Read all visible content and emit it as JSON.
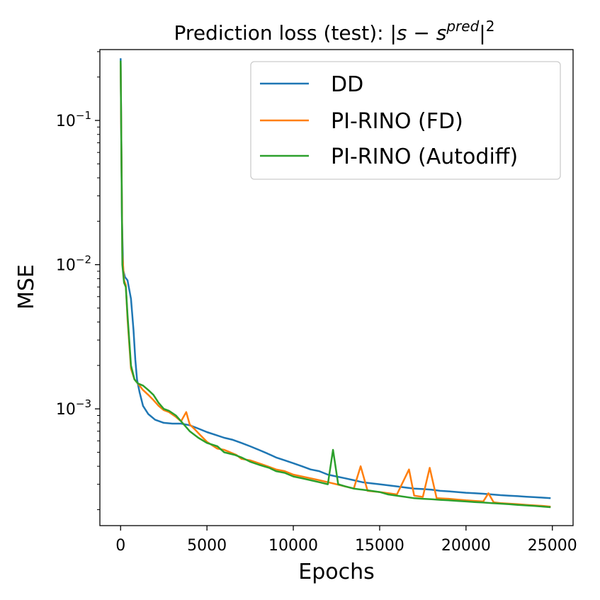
{
  "chart_data": {
    "type": "line",
    "title_prefix": "Prediction loss (test): |",
    "title_s": "s",
    "title_minus": " − ",
    "title_s2": "s",
    "title_sup": "pred",
    "title_suffix": "|",
    "title_exp": "2",
    "xlabel": "Epochs",
    "ylabel": "MSE",
    "xlim": [
      -1200,
      26200
    ],
    "ylim": [
      0.000155,
      0.31
    ],
    "yscale": "log",
    "xticks": [
      0,
      5000,
      10000,
      15000,
      20000,
      25000
    ],
    "xtick_labels": [
      "0",
      "5000",
      "10000",
      "15000",
      "20000",
      "25000"
    ],
    "yticks": [
      0.001,
      0.01,
      0.1
    ],
    "ytick_base": [
      "10",
      "10",
      "10"
    ],
    "ytick_exp": [
      "−3",
      "−2",
      "−1"
    ],
    "legend_location": "upper right",
    "series": [
      {
        "name": "DD",
        "color": "#1f77b4",
        "x": [
          0,
          80,
          150,
          250,
          400,
          600,
          750,
          850,
          950,
          1100,
          1300,
          1600,
          2000,
          2500,
          3000,
          3500,
          4000,
          4500,
          5000,
          5500,
          6000,
          6500,
          7000,
          7500,
          8000,
          8500,
          9000,
          9500,
          10000,
          10500,
          11000,
          11500,
          12000,
          12500,
          13000,
          13500,
          14000,
          14500,
          15000,
          15500,
          16000,
          16500,
          17000,
          17500,
          18000,
          18500,
          19000,
          19500,
          20000,
          20500,
          21000,
          21500,
          22000,
          22500,
          23000,
          23500,
          24000,
          24500,
          24900
        ],
        "y": [
          0.27,
          0.02,
          0.0092,
          0.0082,
          0.0078,
          0.0058,
          0.0035,
          0.0022,
          0.0016,
          0.0013,
          0.00105,
          0.00092,
          0.00084,
          0.0008,
          0.00079,
          0.00079,
          0.00077,
          0.00073,
          0.00069,
          0.00066,
          0.00063,
          0.00061,
          0.00058,
          0.00055,
          0.00052,
          0.00049,
          0.00046,
          0.00044,
          0.00042,
          0.0004,
          0.00038,
          0.00037,
          0.00035,
          0.00034,
          0.00033,
          0.00032,
          0.00031,
          0.000305,
          0.0003,
          0.000295,
          0.00029,
          0.000285,
          0.00028,
          0.000278,
          0.000275,
          0.00027,
          0.000268,
          0.000265,
          0.000262,
          0.00026,
          0.000258,
          0.000255,
          0.000252,
          0.00025,
          0.000248,
          0.000246,
          0.000244,
          0.000242,
          0.00024
        ]
      },
      {
        "name": "PI-RINO (FD)",
        "color": "#ff7f0e",
        "x": [
          0,
          100,
          200,
          300,
          400,
          600,
          800,
          1000,
          1300,
          1600,
          1900,
          2200,
          2500,
          2800,
          3200,
          3500,
          3800,
          4000,
          4300,
          4600,
          5000,
          5600,
          6000,
          6700,
          7000,
          7500,
          8000,
          8500,
          9000,
          9500,
          10000,
          10500,
          11000,
          11500,
          12000,
          12500,
          13000,
          13500,
          13900,
          14300,
          15000,
          15500,
          16000,
          16700,
          17000,
          17500,
          17900,
          18300,
          19000,
          19500,
          20000,
          20500,
          21000,
          21300,
          21600,
          22000,
          22500,
          23000,
          23500,
          24000,
          24500,
          24900
        ],
        "y": [
          0.25,
          0.012,
          0.0078,
          0.0072,
          0.0042,
          0.0019,
          0.0016,
          0.0015,
          0.00135,
          0.00125,
          0.00115,
          0.00105,
          0.00098,
          0.00095,
          0.00088,
          0.00082,
          0.00095,
          0.00078,
          0.00072,
          0.00066,
          0.00059,
          0.00053,
          0.00052,
          0.00048,
          0.00045,
          0.00044,
          0.00042,
          0.0004,
          0.00038,
          0.00037,
          0.00035,
          0.00034,
          0.00033,
          0.00032,
          0.00031,
          0.0003,
          0.00029,
          0.00028,
          0.0004,
          0.00027,
          0.000265,
          0.00026,
          0.000255,
          0.00038,
          0.00025,
          0.000245,
          0.00039,
          0.00024,
          0.000238,
          0.000235,
          0.000232,
          0.00023,
          0.000228,
          0.00026,
          0.000225,
          0.000222,
          0.00022,
          0.000218,
          0.000216,
          0.000214,
          0.000212,
          0.00021
        ]
      },
      {
        "name": "PI-RINO (Autodiff)",
        "color": "#2ca02c",
        "x": [
          0,
          100,
          200,
          300,
          400,
          600,
          800,
          1000,
          1300,
          1600,
          1900,
          2200,
          2500,
          2800,
          3200,
          3500,
          4000,
          4500,
          5000,
          5600,
          6000,
          6600,
          7000,
          7500,
          8000,
          8600,
          9000,
          9500,
          10000,
          10500,
          11000,
          11500,
          12000,
          12300,
          12600,
          13000,
          13500,
          14000,
          14500,
          15000,
          15500,
          16000,
          16500,
          17000,
          17500,
          18000,
          18500,
          19000,
          19500,
          20000,
          20500,
          21000,
          21500,
          22000,
          22500,
          23000,
          23500,
          24000,
          24500,
          24900
        ],
        "y": [
          0.26,
          0.01,
          0.0075,
          0.007,
          0.0045,
          0.002,
          0.0016,
          0.0015,
          0.00145,
          0.00135,
          0.00125,
          0.0011,
          0.001,
          0.00097,
          0.0009,
          0.00082,
          0.0007,
          0.00063,
          0.00058,
          0.00055,
          0.0005,
          0.00048,
          0.00046,
          0.00043,
          0.00041,
          0.00039,
          0.00037,
          0.00036,
          0.00034,
          0.00033,
          0.00032,
          0.00031,
          0.0003,
          0.00052,
          0.0003,
          0.00029,
          0.00028,
          0.000275,
          0.00027,
          0.000265,
          0.000255,
          0.00025,
          0.000245,
          0.00024,
          0.000238,
          0.000236,
          0.000234,
          0.000232,
          0.00023,
          0.000228,
          0.000226,
          0.000224,
          0.000222,
          0.00022,
          0.000218,
          0.000216,
          0.000214,
          0.000212,
          0.00021,
          0.000208
        ]
      }
    ]
  }
}
